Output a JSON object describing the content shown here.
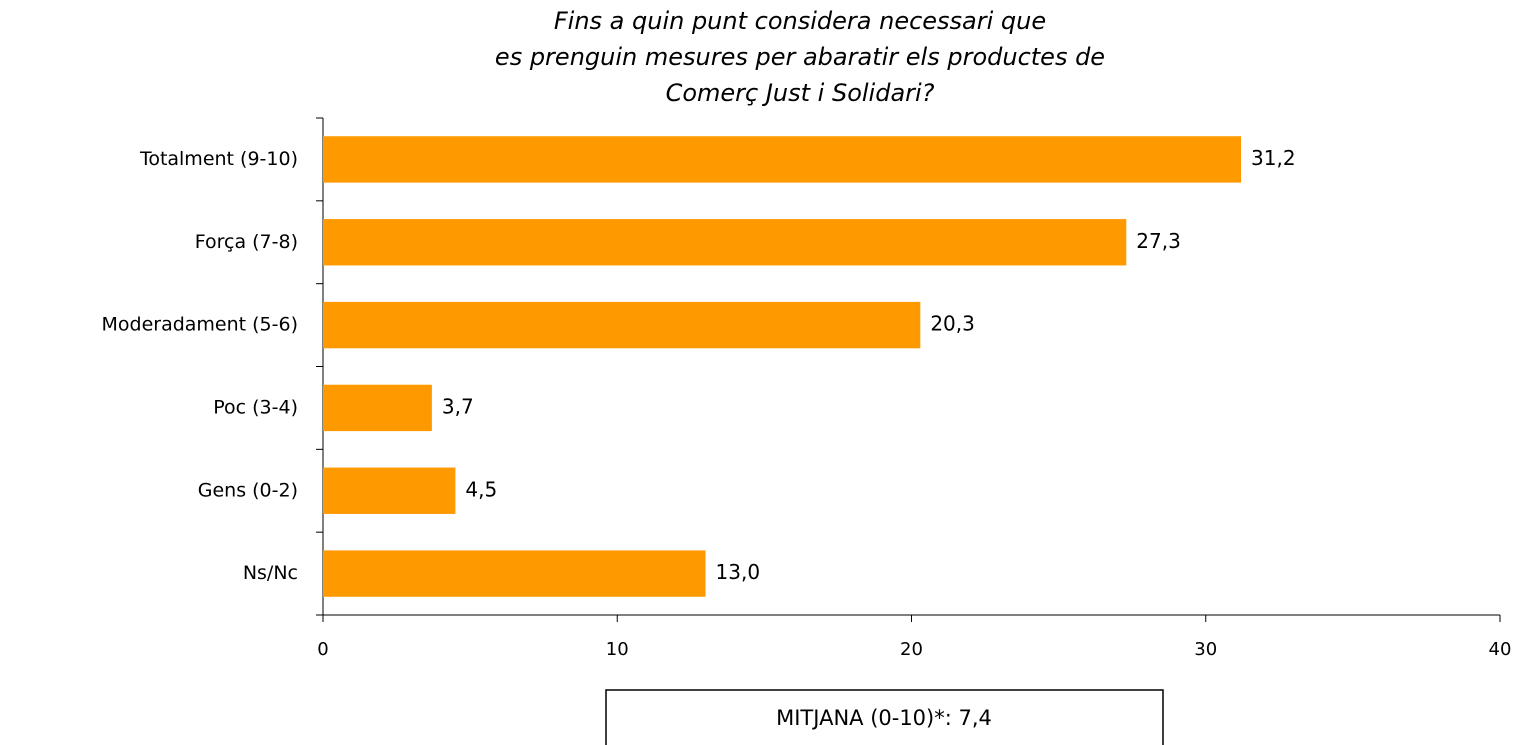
{
  "chart_data": {
    "type": "bar",
    "orientation": "horizontal",
    "title": [
      "Fins a quin punt considera necessari que",
      "es prenguin mesures per abaratir els productes de",
      "Comerç Just i Solidari?"
    ],
    "categories": [
      "Totalment (9-10)",
      "Força (7-8)",
      "Moderadament (5-6)",
      "Poc (3-4)",
      "Gens (0-2)",
      "Ns/Nc"
    ],
    "values": [
      31.2,
      27.3,
      20.3,
      3.7,
      4.5,
      13.0
    ],
    "value_labels": [
      "31,2",
      "27,3",
      "20,3",
      "3,7",
      "4,5",
      "13,0"
    ],
    "color": "#ff9900",
    "xlim": [
      0,
      40
    ],
    "xticks": [
      0,
      10,
      20,
      30,
      40
    ],
    "annotation": "MITJANA (0-10)*: 7,4"
  }
}
